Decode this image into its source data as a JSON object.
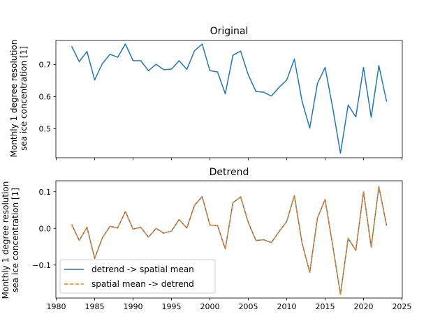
{
  "colors": {
    "series_1": "#1f77b4",
    "series_2": "#ff7f0e",
    "axis": "#000000",
    "background": "#ffffff"
  },
  "chart_data": [
    {
      "type": "line",
      "title": "Original",
      "xlabel": "",
      "ylabel_line1": "Monthly 1 degree resolution",
      "ylabel_line2": "sea ice concentration [1]",
      "xlim": [
        1979.95,
        2025.05
      ],
      "ylim": [
        0.41,
        0.775
      ],
      "x_tick_values": [
        1980,
        1985,
        1990,
        1995,
        2000,
        2005,
        2010,
        2015,
        2020,
        2025
      ],
      "x_tick_labels": [],
      "y_tick_values": [
        0.5,
        0.6,
        0.7
      ],
      "y_tick_labels": [
        "0.5",
        "0.6",
        "0.7"
      ],
      "grid": false,
      "legend": null,
      "x": [
        1982,
        1983,
        1984,
        1985,
        1986,
        1987,
        1988,
        1989,
        1990,
        1991,
        1992,
        1993,
        1994,
        1995,
        1996,
        1997,
        1998,
        1999,
        2000,
        2001,
        2002,
        2003,
        2004,
        2005,
        2006,
        2007,
        2008,
        2009,
        2010,
        2011,
        2012,
        2013,
        2014,
        2015,
        2016,
        2017,
        2018,
        2019,
        2020,
        2021,
        2022,
        2023
      ],
      "series": [
        {
          "name": "",
          "values": [
            0.757,
            0.709,
            0.741,
            0.652,
            0.703,
            0.732,
            0.723,
            0.764,
            0.712,
            0.712,
            0.681,
            0.701,
            0.684,
            0.686,
            0.712,
            0.685,
            0.743,
            0.764,
            0.681,
            0.677,
            0.609,
            0.729,
            0.742,
            0.668,
            0.616,
            0.614,
            0.602,
            0.629,
            0.652,
            0.717,
            0.586,
            0.502,
            0.641,
            0.691,
            0.564,
            0.424,
            0.574,
            0.537,
            0.691,
            0.536,
            0.697,
            0.585
          ]
        }
      ]
    },
    {
      "type": "line",
      "title": "Detrend",
      "xlabel": "",
      "ylabel_line1": "Monthly 1 degree resolution",
      "ylabel_line2": "sea ice concentration [1]",
      "xlim": [
        1979.95,
        2025.05
      ],
      "ylim": [
        -0.19,
        0.13
      ],
      "x_tick_values": [
        1980,
        1985,
        1990,
        1995,
        2000,
        2005,
        2010,
        2015,
        2020,
        2025
      ],
      "x_tick_labels": [
        "1980",
        "1985",
        "1990",
        "1995",
        "2000",
        "2005",
        "2010",
        "2015",
        "2020",
        "2025"
      ],
      "y_tick_values": [
        -0.1,
        0.0,
        0.1
      ],
      "y_tick_labels": [
        "−0.1",
        "0.0",
        "0.1"
      ],
      "grid": false,
      "legend": "lower-left",
      "x": [
        1982,
        1983,
        1984,
        1985,
        1986,
        1987,
        1988,
        1989,
        1990,
        1991,
        1992,
        1993,
        1994,
        1995,
        1996,
        1997,
        1998,
        1999,
        2000,
        2001,
        2002,
        2003,
        2004,
        2005,
        2006,
        2007,
        2008,
        2009,
        2010,
        2011,
        2012,
        2013,
        2014,
        2015,
        2016,
        2017,
        2018,
        2019,
        2020,
        2021,
        2022,
        2023
      ],
      "series": [
        {
          "name": "detrend -> spatial mean",
          "style": "solid",
          "values": [
            0.011,
            -0.033,
            0.003,
            -0.082,
            -0.026,
            0.006,
            0.001,
            0.046,
            -0.002,
            0.003,
            -0.024,
            0.0,
            -0.013,
            -0.007,
            0.024,
            0.001,
            0.063,
            0.087,
            0.009,
            0.008,
            -0.056,
            0.07,
            0.086,
            0.016,
            -0.033,
            -0.031,
            -0.039,
            -0.009,
            0.019,
            0.089,
            -0.04,
            -0.12,
            0.028,
            0.079,
            -0.048,
            -0.18,
            -0.027,
            -0.06,
            0.1,
            -0.051,
            0.114,
            0.008
          ]
        },
        {
          "name": "spatial mean -> detrend",
          "style": "dashed",
          "values": [
            0.011,
            -0.033,
            0.003,
            -0.082,
            -0.026,
            0.006,
            0.001,
            0.046,
            -0.002,
            0.003,
            -0.024,
            0.0,
            -0.013,
            -0.007,
            0.024,
            0.001,
            0.063,
            0.087,
            0.009,
            0.008,
            -0.056,
            0.07,
            0.086,
            0.016,
            -0.033,
            -0.031,
            -0.039,
            -0.009,
            0.019,
            0.089,
            -0.04,
            -0.12,
            0.028,
            0.079,
            -0.048,
            -0.18,
            -0.027,
            -0.06,
            0.1,
            -0.051,
            0.114,
            0.008
          ]
        }
      ]
    }
  ]
}
